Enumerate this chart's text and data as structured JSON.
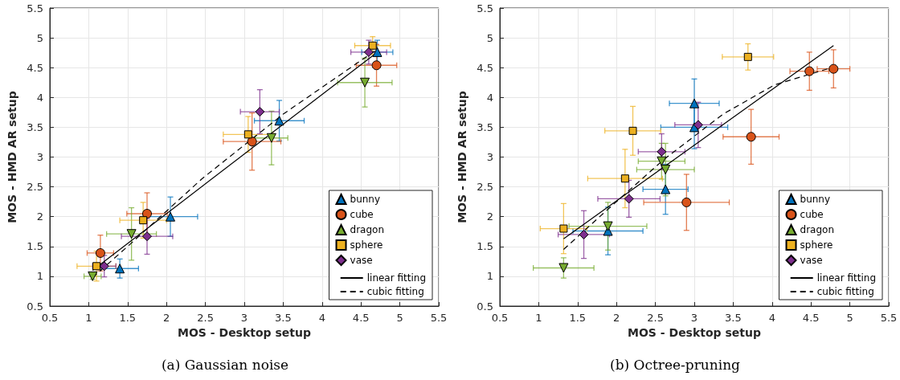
{
  "chart_data": [
    {
      "type": "scatter",
      "title": "(a) Gaussian noise",
      "xlabel": "MOS - Desktop setup",
      "ylabel": "MOS - HMD AR setup",
      "xlim": [
        0.5,
        5.5
      ],
      "ylim": [
        0.5,
        5.5
      ],
      "xticks": [
        0.5,
        1,
        1.5,
        2,
        2.5,
        3,
        3.5,
        4,
        4.5,
        5,
        5.5
      ],
      "yticks": [
        0.5,
        1,
        1.5,
        2,
        2.5,
        3,
        3.5,
        4,
        4.5,
        5,
        5.5
      ],
      "grid": true,
      "legend": "bottom right",
      "series": [
        {
          "name": "bunny",
          "color": "#0072bd",
          "marker": "triangle",
          "x": [
            1.4,
            2.05,
            3.45,
            4.71
          ],
          "values": [
            1.13,
            2.0,
            3.61,
            4.76
          ],
          "xerrors": [
            0.24,
            0.35,
            0.32,
            0.2
          ],
          "errors": [
            0.16,
            0.33,
            0.34,
            0.2
          ]
        },
        {
          "name": "cube",
          "color": "#d95319",
          "marker": "circle",
          "x": [
            1.15,
            1.75,
            3.1,
            4.7
          ],
          "values": [
            1.39,
            2.05,
            3.26,
            4.54
          ],
          "xerrors": [
            0.17,
            0.26,
            0.37,
            0.26
          ],
          "errors": [
            0.3,
            0.35,
            0.48,
            0.35
          ]
        },
        {
          "name": "dragon",
          "color": "#77ac30",
          "marker": "triangle_down",
          "x": [
            1.05,
            1.55,
            3.35,
            4.55
          ],
          "values": [
            1.0,
            1.71,
            3.32,
            4.25
          ],
          "xerrors": [
            0.11,
            0.32,
            0.21,
            0.35
          ],
          "errors": [
            0.05,
            0.44,
            0.45,
            0.41
          ]
        },
        {
          "name": "sphere",
          "color": "#edb120",
          "marker": "square",
          "x": [
            1.1,
            1.7,
            3.05,
            4.65
          ],
          "values": [
            1.17,
            1.94,
            3.38,
            4.87
          ],
          "xerrors": [
            0.25,
            0.3,
            0.32,
            0.23
          ],
          "errors": [
            0.25,
            0.3,
            0.3,
            0.15
          ]
        },
        {
          "name": "vase",
          "color": "#7e2f8e",
          "marker": "diamond",
          "x": [
            1.2,
            1.75,
            3.2,
            4.6
          ],
          "values": [
            1.17,
            1.67,
            3.76,
            4.76
          ],
          "xerrors": [
            0.15,
            0.33,
            0.25,
            0.23
          ],
          "errors": [
            0.18,
            0.3,
            0.37,
            0.2
          ]
        },
        {
          "name": "linear fitting",
          "type": "line",
          "color": "#000000",
          "marker": "none",
          "line_style": "solid",
          "x": [
            1.05,
            4.71
          ],
          "values": [
            1.1,
            4.76
          ]
        },
        {
          "name": "cubic fitting",
          "type": "line",
          "color": "#000000",
          "marker": "none",
          "line_style": "dashed",
          "x": [
            1.05,
            1.5,
            2.46,
            3.5,
            4.2,
            4.7
          ],
          "values": [
            0.98,
            1.5,
            2.64,
            3.72,
            4.35,
            4.8
          ]
        }
      ]
    },
    {
      "type": "scatter",
      "title": "(b) Octree-pruning",
      "xlabel": "MOS - Desktop setup",
      "ylabel": "MOS - HMD AR setup",
      "xlim": [
        0.5,
        5.5
      ],
      "ylim": [
        0.5,
        5.5
      ],
      "xticks": [
        0.5,
        1,
        1.5,
        2,
        2.5,
        3,
        3.5,
        4,
        4.5,
        5,
        5.5
      ],
      "yticks": [
        0.5,
        1,
        1.5,
        2,
        2.5,
        3,
        3.5,
        4,
        4.5,
        5,
        5.5
      ],
      "grid": true,
      "legend": "bottom right",
      "series": [
        {
          "name": "bunny",
          "color": "#0072bd",
          "marker": "triangle",
          "x": [
            1.89,
            2.63,
            3.0,
            3.0
          ],
          "values": [
            1.76,
            2.46,
            3.9,
            3.5
          ],
          "xerrors": [
            0.45,
            0.29,
            0.32,
            0.43
          ],
          "errors": [
            0.4,
            0.42,
            0.41,
            0.36
          ]
        },
        {
          "name": "cube",
          "color": "#d95319",
          "marker": "circle",
          "x": [
            2.9,
            3.73,
            4.48,
            4.79
          ],
          "values": [
            2.24,
            3.34,
            4.44,
            4.48
          ],
          "xerrors": [
            0.55,
            0.36,
            0.25,
            0.21
          ],
          "errors": [
            0.47,
            0.46,
            0.32,
            0.32
          ]
        },
        {
          "name": "dragon",
          "color": "#77ac30",
          "marker": "triangle_down",
          "x": [
            1.32,
            1.89,
            2.58,
            2.63
          ],
          "values": [
            1.14,
            1.84,
            2.93,
            2.79
          ],
          "xerrors": [
            0.39,
            0.5,
            0.3,
            0.37
          ],
          "errors": [
            0.17,
            0.4,
            0.3,
            0.44
          ]
        },
        {
          "name": "sphere",
          "color": "#edb120",
          "marker": "square",
          "x": [
            1.32,
            2.11,
            2.21,
            3.69
          ],
          "values": [
            1.8,
            2.64,
            3.44,
            4.68
          ],
          "xerrors": [
            0.3,
            0.48,
            0.36,
            0.33
          ],
          "errors": [
            0.42,
            0.49,
            0.41,
            0.22
          ]
        },
        {
          "name": "vase",
          "color": "#7e2f8e",
          "marker": "diamond",
          "x": [
            1.58,
            2.16,
            2.58,
            3.05
          ],
          "values": [
            1.7,
            2.3,
            3.09,
            3.54
          ],
          "xerrors": [
            0.33,
            0.4,
            0.3,
            0.3
          ],
          "errors": [
            0.4,
            0.31,
            0.3,
            0.38
          ]
        },
        {
          "name": "linear fitting",
          "type": "line",
          "color": "#000000",
          "marker": "none",
          "line_style": "solid",
          "x": [
            1.32,
            4.79
          ],
          "values": [
            1.63,
            4.87
          ]
        },
        {
          "name": "cubic fitting",
          "type": "line",
          "color": "#000000",
          "marker": "none",
          "line_style": "dashed",
          "x": [
            1.32,
            1.86,
            2.6,
            3.37,
            4.03,
            4.74
          ],
          "values": [
            1.45,
            2.09,
            2.95,
            3.72,
            4.21,
            4.49
          ]
        }
      ]
    }
  ]
}
